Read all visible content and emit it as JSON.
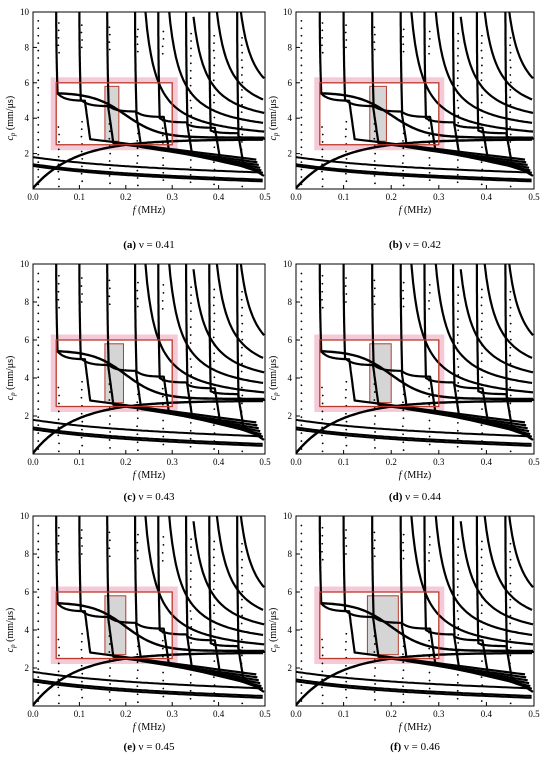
{
  "chart_data": [
    {
      "type": "line",
      "panel": "(a)",
      "caption_prefix": "(a)",
      "caption_rest": " ν = 0.41",
      "xlabel": "f",
      "xunit": " (MHz)",
      "ylabel": "c",
      "ysub": "p",
      "yunit": " (mm/μs)",
      "xlim": [
        0,
        0.5
      ],
      "ylim": [
        0,
        10
      ],
      "xticks": [
        "0.0",
        "0.1",
        "0.2",
        "0.3",
        "0.4",
        "0.5"
      ],
      "yticks": [
        "2",
        "4",
        "6",
        "8",
        "10"
      ],
      "rect_outer": {
        "f_range": [
          0.05,
          0.3
        ],
        "cp_range": [
          2.5,
          6
        ]
      },
      "rect_inner": {
        "f_range": [
          0.155,
          0.185
        ],
        "cp_range": [
          2.7,
          5.8
        ]
      },
      "cutoff_frequencies": [
        0.05,
        0.1,
        0.16,
        0.22,
        0.27,
        0.33,
        0.38,
        0.44
      ],
      "asymptote_frequencies": [
        0.25,
        0.3,
        0.35,
        0.4,
        0.45
      ],
      "dot_columns": [
        0.012,
        0.055,
        0.105,
        0.165,
        0.225,
        0.28,
        0.34,
        0.39,
        0.45
      ]
    },
    {
      "type": "line",
      "panel": "(b)",
      "caption_prefix": "(b)",
      "caption_rest": " ν = 0.42",
      "xlabel": "f",
      "xunit": " (MHz)",
      "ylabel": "c",
      "ysub": "p",
      "yunit": " (mm/μs)",
      "xlim": [
        0,
        0.5
      ],
      "ylim": [
        0,
        10
      ],
      "xticks": [
        "0.0",
        "0.1",
        "0.2",
        "0.3",
        "0.4",
        "0.5"
      ],
      "yticks": [
        "2",
        "4",
        "6",
        "8",
        "10"
      ],
      "rect_outer": {
        "f_range": [
          0.05,
          0.3
        ],
        "cp_range": [
          2.5,
          6
        ]
      },
      "rect_inner": {
        "f_range": [
          0.155,
          0.19
        ],
        "cp_range": [
          2.7,
          5.8
        ]
      },
      "cutoff_frequencies": [
        0.05,
        0.1,
        0.16,
        0.22,
        0.27,
        0.33,
        0.38,
        0.44
      ],
      "asymptote_frequencies": [
        0.25,
        0.3,
        0.35,
        0.4,
        0.45
      ],
      "dot_columns": [
        0.012,
        0.055,
        0.105,
        0.165,
        0.225,
        0.28,
        0.34,
        0.39,
        0.45
      ]
    },
    {
      "type": "line",
      "panel": "(c)",
      "caption_prefix": "(c)",
      "caption_rest": " ν = 0.43",
      "xlabel": "f",
      "xunit": " (MHz)",
      "ylabel": "c",
      "ysub": "p",
      "yunit": " (mm/μs)",
      "xlim": [
        0,
        0.5
      ],
      "ylim": [
        0,
        10
      ],
      "xticks": [
        "0.0",
        "0.1",
        "0.2",
        "0.3",
        "0.4",
        "0.5"
      ],
      "yticks": [
        "2",
        "4",
        "6",
        "8",
        "10"
      ],
      "rect_outer": {
        "f_range": [
          0.05,
          0.3
        ],
        "cp_range": [
          2.5,
          6
        ]
      },
      "rect_inner": {
        "f_range": [
          0.155,
          0.195
        ],
        "cp_range": [
          2.7,
          5.8
        ]
      },
      "cutoff_frequencies": [
        0.05,
        0.1,
        0.16,
        0.22,
        0.27,
        0.33,
        0.38,
        0.44
      ],
      "asymptote_frequencies": [
        0.25,
        0.3,
        0.35,
        0.4,
        0.45
      ],
      "dot_columns": [
        0.012,
        0.055,
        0.105,
        0.165,
        0.225,
        0.28,
        0.34,
        0.39,
        0.45
      ]
    },
    {
      "type": "line",
      "panel": "(d)",
      "caption_prefix": "(d)",
      "caption_rest": " ν = 0.44",
      "xlabel": "f",
      "xunit": " (MHz)",
      "ylabel": "c",
      "ysub": "p",
      "yunit": " (mm/μs)",
      "xlim": [
        0,
        0.5
      ],
      "ylim": [
        0,
        10
      ],
      "xticks": [
        "0.0",
        "0.1",
        "0.2",
        "0.3",
        "0.4",
        "0.5"
      ],
      "yticks": [
        "2",
        "4",
        "6",
        "8",
        "10"
      ],
      "rect_outer": {
        "f_range": [
          0.05,
          0.3
        ],
        "cp_range": [
          2.5,
          6
        ]
      },
      "rect_inner": {
        "f_range": [
          0.155,
          0.2
        ],
        "cp_range": [
          2.7,
          5.8
        ]
      },
      "cutoff_frequencies": [
        0.05,
        0.1,
        0.16,
        0.22,
        0.27,
        0.33,
        0.38,
        0.44
      ],
      "asymptote_frequencies": [
        0.25,
        0.3,
        0.35,
        0.4,
        0.45
      ],
      "dot_columns": [
        0.012,
        0.055,
        0.105,
        0.165,
        0.225,
        0.28,
        0.34,
        0.39,
        0.45
      ]
    },
    {
      "type": "line",
      "panel": "(e)",
      "caption_prefix": "(e)",
      "caption_rest": " ν = 0.45",
      "xlabel": "f",
      "xunit": " (MHz)",
      "ylabel": "c",
      "ysub": "p",
      "yunit": " (mm/μs)",
      "xlim": [
        0,
        0.5
      ],
      "ylim": [
        0,
        10
      ],
      "xticks": [
        "0.0",
        "0.1",
        "0.2",
        "0.3",
        "0.4",
        "0.5"
      ],
      "yticks": [
        "2",
        "4",
        "6",
        "8",
        "10"
      ],
      "rect_outer": {
        "f_range": [
          0.05,
          0.3
        ],
        "cp_range": [
          2.5,
          6
        ]
      },
      "rect_inner": {
        "f_range": [
          0.155,
          0.2
        ],
        "cp_range": [
          2.7,
          5.8
        ]
      },
      "cutoff_frequencies": [
        0.05,
        0.1,
        0.16,
        0.22,
        0.27,
        0.33,
        0.38,
        0.44
      ],
      "asymptote_frequencies": [
        0.25,
        0.3,
        0.35,
        0.4,
        0.45
      ],
      "dot_columns": [
        0.012,
        0.055,
        0.105,
        0.165,
        0.225,
        0.28,
        0.34,
        0.39,
        0.45
      ]
    },
    {
      "type": "line",
      "panel": "(f)",
      "caption_prefix": "(f)",
      "caption_rest": " ν = 0.46",
      "xlabel": "f",
      "xunit": " (MHz)",
      "ylabel": "c",
      "ysub": "p",
      "yunit": " (mm/μs)",
      "xlim": [
        0,
        0.5
      ],
      "ylim": [
        0,
        10
      ],
      "xticks": [
        "0.0",
        "0.1",
        "0.2",
        "0.3",
        "0.4",
        "0.5"
      ],
      "yticks": [
        "2",
        "4",
        "6",
        "8",
        "10"
      ],
      "rect_outer": {
        "f_range": [
          0.05,
          0.3
        ],
        "cp_range": [
          2.5,
          6
        ]
      },
      "rect_inner": {
        "f_range": [
          0.15,
          0.215
        ],
        "cp_range": [
          2.7,
          5.8
        ]
      },
      "cutoff_frequencies": [
        0.05,
        0.1,
        0.16,
        0.22,
        0.27,
        0.33,
        0.38,
        0.44
      ],
      "asymptote_frequencies": [
        0.25,
        0.3,
        0.35,
        0.4,
        0.45
      ],
      "dot_columns": [
        0.012,
        0.055,
        0.105,
        0.165,
        0.225,
        0.28,
        0.34,
        0.39,
        0.45
      ]
    }
  ],
  "colors": {
    "curve": "#000000",
    "outer_box_stroke": "#b73a2e",
    "outer_box_glow": "#f6c9d6",
    "inner_box_fill": "#d5d5d5",
    "inner_box_stroke": "#b73a2e",
    "axis": "#000000"
  }
}
